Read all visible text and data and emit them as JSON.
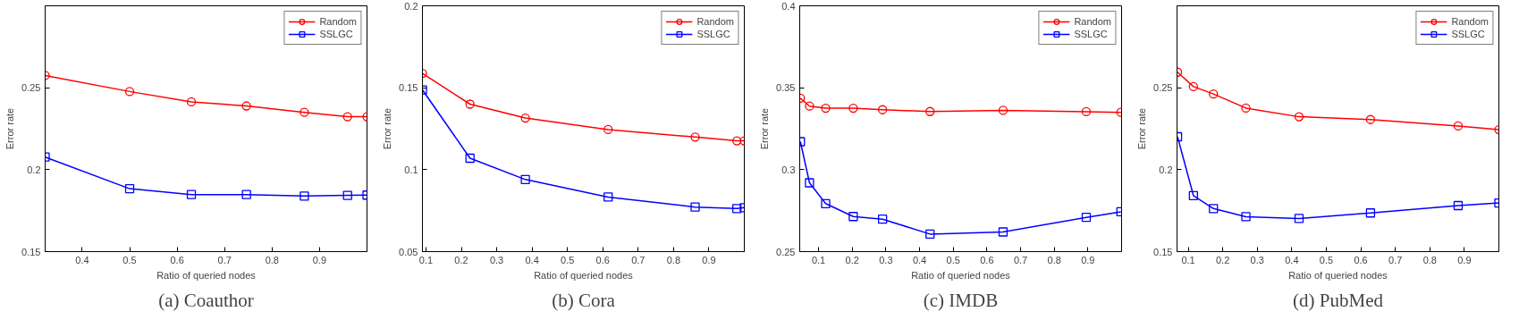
{
  "chart_data": [
    {
      "type": "line",
      "title": "(a) Coauthor",
      "xlabel": "Ratio of queried nodes",
      "ylabel": "Error rate",
      "xlim": [
        0.322,
        1.0
      ],
      "ylim": [
        0.15,
        0.3
      ],
      "xticks": [
        0.4,
        0.5,
        0.6,
        0.7,
        0.8,
        0.9
      ],
      "yticks": [
        0.15,
        0.2,
        0.25
      ],
      "grid": false,
      "legend": "top right",
      "x": [
        0.322,
        0.5,
        0.63,
        0.746,
        0.868,
        0.959,
        1.0
      ],
      "series": [
        {
          "name": "Random",
          "color": "#ff0000",
          "marker": "circle",
          "values": [
            0.2575,
            0.2477,
            0.2414,
            0.2389,
            0.235,
            0.2323,
            0.2323
          ]
        },
        {
          "name": "SSLGC",
          "color": "#0000ff",
          "marker": "square",
          "values": [
            0.2077,
            0.1884,
            0.1848,
            0.1848,
            0.1839,
            0.1843,
            0.1845
          ]
        }
      ]
    },
    {
      "type": "line",
      "title": "(b) Cora",
      "xlabel": "Ratio of queried nodes",
      "ylabel": "Error rate",
      "xlim": [
        0.09,
        1.0
      ],
      "ylim": [
        0.05,
        0.2
      ],
      "xticks": [
        0.1,
        0.2,
        0.3,
        0.4,
        0.5,
        0.6,
        0.7,
        0.8,
        0.9
      ],
      "yticks": [
        0.05,
        0.1,
        0.15,
        0.2
      ],
      "grid": false,
      "legend": "top right",
      "x": [
        0.09,
        0.2245,
        0.381,
        0.615,
        0.861,
        0.979,
        1.0
      ],
      "series": [
        {
          "name": "Random",
          "color": "#ff0000",
          "marker": "circle",
          "values": [
            0.1588,
            0.14,
            0.1315,
            0.1245,
            0.1199,
            0.1176,
            0.1176
          ]
        },
        {
          "name": "SSLGC",
          "color": "#0000ff",
          "marker": "square",
          "values": [
            0.1487,
            0.107,
            0.094,
            0.0833,
            0.0772,
            0.0763,
            0.0768
          ]
        }
      ]
    },
    {
      "type": "line",
      "title": "(c) IMDB",
      "xlabel": "Ratio of queried nodes",
      "ylabel": "Error rate",
      "xlim": [
        0.044,
        1.0
      ],
      "ylim": [
        0.25,
        0.4
      ],
      "xticks": [
        0.1,
        0.2,
        0.3,
        0.4,
        0.5,
        0.6,
        0.7,
        0.8,
        0.9
      ],
      "yticks": [
        0.25,
        0.3,
        0.35,
        0.4
      ],
      "grid": false,
      "legend": "top right",
      "x": [
        0.046,
        0.073,
        0.121,
        0.203,
        0.29,
        0.431,
        0.648,
        0.895,
        0.998
      ],
      "series": [
        {
          "name": "Random",
          "color": "#ff0000",
          "marker": "circle",
          "values": [
            0.3436,
            0.3388,
            0.3375,
            0.3375,
            0.3366,
            0.3355,
            0.3362,
            0.3354,
            0.335
          ]
        },
        {
          "name": "SSLGC",
          "color": "#0000ff",
          "marker": "square",
          "values": [
            0.3171,
            0.292,
            0.2793,
            0.2714,
            0.2698,
            0.2607,
            0.262,
            0.2709,
            0.2743
          ]
        }
      ]
    },
    {
      "type": "line",
      "title": "(d) PubMed",
      "xlabel": "Ratio of queried nodes",
      "ylabel": "Error rate",
      "xlim": [
        0.0675,
        1.0
      ],
      "ylim": [
        0.15,
        0.3
      ],
      "xticks": [
        0.1,
        0.2,
        0.3,
        0.4,
        0.5,
        0.6,
        0.7,
        0.8,
        0.9
      ],
      "yticks": [
        0.15,
        0.2,
        0.25
      ],
      "grid": false,
      "legend": "top right",
      "x": [
        0.069,
        0.115,
        0.173,
        0.267,
        0.421,
        0.628,
        0.882,
        1.0
      ],
      "series": [
        {
          "name": "Random",
          "color": "#ff0000",
          "marker": "circle",
          "values": [
            0.2595,
            0.2507,
            0.2462,
            0.2376,
            0.2323,
            0.2306,
            0.2267,
            0.2244
          ]
        },
        {
          "name": "SSLGC",
          "color": "#0000ff",
          "marker": "square",
          "values": [
            0.2201,
            0.1842,
            0.1763,
            0.1713,
            0.1702,
            0.1736,
            0.1781,
            0.1797
          ]
        }
      ]
    }
  ]
}
